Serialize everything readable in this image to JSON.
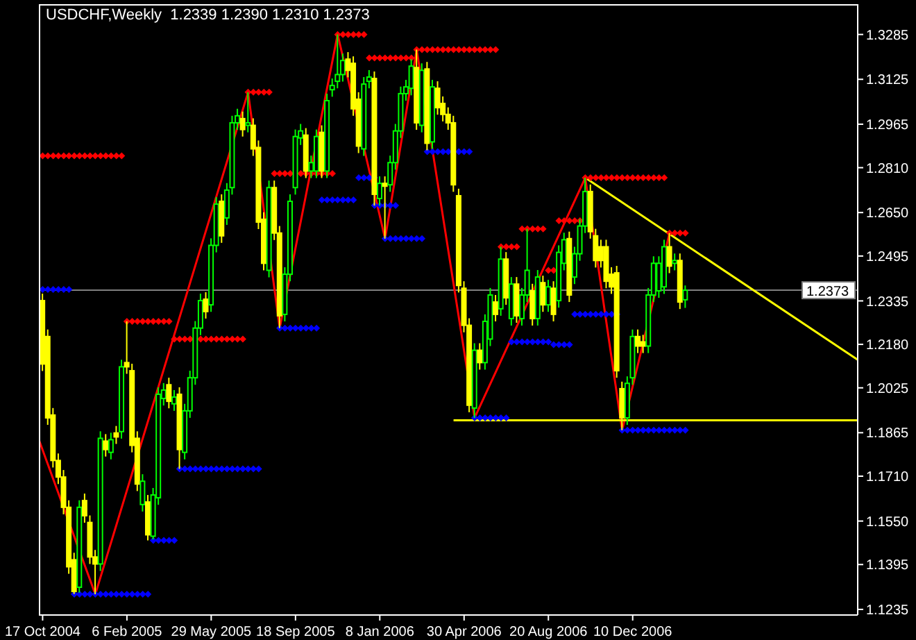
{
  "chart_data": {
    "type": "candlestick",
    "title": "USDCHF,Weekly  1.2339 1.2390 1.2310 1.2373",
    "x": [
      "2004-10-17",
      "2004-10-24",
      "2004-10-31",
      "2004-11-07",
      "2004-11-14",
      "2004-11-21",
      "2004-11-28",
      "2004-12-05",
      "2004-12-12",
      "2004-12-19",
      "2004-12-26",
      "2005-01-02",
      "2005-01-09",
      "2005-01-16",
      "2005-01-23",
      "2005-01-30",
      "2005-02-06",
      "2005-02-13",
      "2005-02-20",
      "2005-02-27",
      "2005-03-06",
      "2005-03-13",
      "2005-03-20",
      "2005-03-27",
      "2005-04-03",
      "2005-04-10",
      "2005-04-17",
      "2005-04-24",
      "2005-05-01",
      "2005-05-08",
      "2005-05-15",
      "2005-05-22",
      "2005-05-29",
      "2005-06-05",
      "2005-06-12",
      "2005-06-19",
      "2005-06-26",
      "2005-07-03",
      "2005-07-10",
      "2005-07-17",
      "2005-07-24",
      "2005-07-31",
      "2005-08-07",
      "2005-08-14",
      "2005-08-21",
      "2005-08-28",
      "2005-09-04",
      "2005-09-11",
      "2005-09-18",
      "2005-09-25",
      "2005-10-02",
      "2005-10-09",
      "2005-10-16",
      "2005-10-23",
      "2005-10-30",
      "2005-11-06",
      "2005-11-13",
      "2005-11-20",
      "2005-11-27",
      "2005-12-04",
      "2005-12-11",
      "2005-12-18",
      "2005-12-25",
      "2006-01-01",
      "2006-01-08",
      "2006-01-15",
      "2006-01-22",
      "2006-01-29",
      "2006-02-05",
      "2006-02-12",
      "2006-02-19",
      "2006-02-26",
      "2006-03-05",
      "2006-03-12",
      "2006-03-19",
      "2006-03-26",
      "2006-04-02",
      "2006-04-09",
      "2006-04-16",
      "2006-04-23",
      "2006-04-30",
      "2006-05-07",
      "2006-05-14",
      "2006-05-21",
      "2006-05-28",
      "2006-06-04",
      "2006-06-11",
      "2006-06-18",
      "2006-06-25",
      "2006-07-02",
      "2006-07-09",
      "2006-07-16",
      "2006-07-23",
      "2006-07-30",
      "2006-08-06",
      "2006-08-13",
      "2006-08-20",
      "2006-08-27",
      "2006-09-03",
      "2006-09-10",
      "2006-09-17",
      "2006-09-24",
      "2006-10-01",
      "2006-10-08",
      "2006-10-15",
      "2006-10-22",
      "2006-10-29",
      "2006-11-05",
      "2006-11-12",
      "2006-11-19",
      "2006-11-26",
      "2006-12-03",
      "2006-12-10",
      "2006-12-17",
      "2006-12-24",
      "2006-12-31",
      "2007-01-07",
      "2007-01-14",
      "2007-01-21",
      "2007-01-28",
      "2007-02-04",
      "2007-02-11",
      "2007-02-18"
    ],
    "ohlc": [
      [
        1.2336,
        1.2361,
        1.2085,
        1.211
      ],
      [
        1.2208,
        1.2233,
        1.1893,
        1.1918
      ],
      [
        1.1928,
        1.1953,
        1.1741,
        1.1766
      ],
      [
        1.1766,
        1.1791,
        1.1682,
        1.1707
      ],
      [
        1.1707,
        1.1732,
        1.1574,
        1.1599
      ],
      [
        1.1599,
        1.1624,
        1.1362,
        1.1387
      ],
      [
        1.1412,
        1.1437,
        1.129,
        1.1299
      ],
      [
        1.1314,
        1.1624,
        1.1295,
        1.1599
      ],
      [
        1.1623,
        1.1648,
        1.1544,
        1.1569
      ],
      [
        1.1545,
        1.157,
        1.1397,
        1.1422
      ],
      [
        1.1422,
        1.1447,
        1.1289,
        1.1397
      ],
      [
        1.1397,
        1.187,
        1.1372,
        1.1845
      ],
      [
        1.1835,
        1.186,
        1.178,
        1.1805
      ],
      [
        1.1795,
        1.1865,
        1.177,
        1.184
      ],
      [
        1.1864,
        1.1889,
        1.1825,
        1.185
      ],
      [
        1.1869,
        1.2125,
        1.1844,
        1.21
      ],
      [
        1.2115,
        1.2262,
        1.2075,
        1.21
      ],
      [
        1.2086,
        1.2111,
        1.1795,
        1.182
      ],
      [
        1.1845,
        1.187,
        1.1657,
        1.1682
      ],
      [
        1.1609,
        1.1717,
        1.1584,
        1.1692
      ],
      [
        1.1618,
        1.1643,
        1.1481,
        1.1501
      ],
      [
        1.1496,
        1.1668,
        1.1485,
        1.1643
      ],
      [
        1.1633,
        1.2027,
        1.1608,
        1.2002
      ],
      [
        1.1987,
        1.2042,
        1.1962,
        1.2017
      ],
      [
        1.2036,
        1.2061,
        1.1952,
        1.1977
      ],
      [
        1.1968,
        1.2017,
        1.1943,
        1.1992
      ],
      [
        1.2002,
        1.2027,
        1.1736,
        1.1805
      ],
      [
        1.1795,
        1.1968,
        1.177,
        1.1943
      ],
      [
        1.1943,
        1.2086,
        1.1918,
        1.2061
      ],
      [
        1.2061,
        1.2263,
        1.2036,
        1.2238
      ],
      [
        1.2238,
        1.2361,
        1.2213,
        1.2336
      ],
      [
        1.2341,
        1.2366,
        1.2272,
        1.2297
      ],
      [
        1.2321,
        1.2558,
        1.2296,
        1.2533
      ],
      [
        1.2533,
        1.2705,
        1.2508,
        1.268
      ],
      [
        1.269,
        1.2715,
        1.2542,
        1.2567
      ],
      [
        1.2631,
        1.2755,
        1.2606,
        1.273
      ],
      [
        1.2739,
        1.2995,
        1.2714,
        1.297
      ],
      [
        1.297,
        1.302,
        1.2945,
        1.2995
      ],
      [
        1.2985,
        1.301,
        1.2921,
        1.2946
      ],
      [
        1.2961,
        1.3079,
        1.2936,
        1.297
      ],
      [
        1.2961,
        1.2986,
        1.2852,
        1.2877
      ],
      [
        1.2882,
        1.2907,
        1.2591,
        1.2616
      ],
      [
        1.2626,
        1.2651,
        1.2444,
        1.2469
      ],
      [
        1.2444,
        1.2764,
        1.2419,
        1.2739
      ],
      [
        1.2739,
        1.2764,
        1.2552,
        1.2577
      ],
      [
        1.2577,
        1.2602,
        1.2238,
        1.2282
      ],
      [
        1.2287,
        1.2455,
        1.2262,
        1.243
      ],
      [
        1.243,
        1.2715,
        1.2405,
        1.269
      ],
      [
        1.2739,
        1.2946,
        1.2714,
        1.2921
      ],
      [
        1.2916,
        1.2966,
        1.2891,
        1.2941
      ],
      [
        1.2926,
        1.2951,
        1.2773,
        1.2798
      ],
      [
        1.2798,
        1.2853,
        1.2773,
        1.2828
      ],
      [
        1.2798,
        1.2946,
        1.2773,
        1.2921
      ],
      [
        1.2936,
        1.2961,
        1.2773,
        1.2798
      ],
      [
        1.2798,
        1.3074,
        1.2773,
        1.3049
      ],
      [
        1.3088,
        1.3128,
        1.3063,
        1.3103
      ],
      [
        1.3118,
        1.3285,
        1.3093,
        1.3142
      ],
      [
        1.3142,
        1.3217,
        1.3117,
        1.3192
      ],
      [
        1.3197,
        1.3222,
        1.3132,
        1.3157
      ],
      [
        1.3182,
        1.3207,
        1.2995,
        1.302
      ],
      [
        1.3054,
        1.3079,
        1.2862,
        1.2887
      ],
      [
        1.2877,
        1.3133,
        1.2852,
        1.3108
      ],
      [
        1.3118,
        1.3158,
        1.3093,
        1.3133
      ],
      [
        1.3128,
        1.3153,
        1.2675,
        1.2715
      ],
      [
        1.27,
        1.2779,
        1.2675,
        1.2754
      ],
      [
        1.2754,
        1.2779,
        1.2557,
        1.2744
      ],
      [
        1.2749,
        1.2853,
        1.2724,
        1.2828
      ],
      [
        1.2828,
        1.2966,
        1.2803,
        1.2941
      ],
      [
        1.2941,
        1.3099,
        1.2916,
        1.3074
      ],
      [
        1.3074,
        1.3123,
        1.3049,
        1.3098
      ],
      [
        1.3093,
        1.3197,
        1.3068,
        1.3172
      ],
      [
        1.3167,
        1.3231,
        1.2945,
        1.297
      ],
      [
        1.2961,
        1.3182,
        1.2936,
        1.3157
      ],
      [
        1.3162,
        1.3187,
        1.2872,
        1.2897
      ],
      [
        1.2902,
        1.3123,
        1.2877,
        1.3098
      ],
      [
        1.3093,
        1.3118,
        1.2999,
        1.3024
      ],
      [
        1.3039,
        1.3064,
        1.2975,
        1.3
      ],
      [
        1.3,
        1.3025,
        1.2945,
        1.297
      ],
      [
        1.297,
        1.2995,
        1.2724,
        1.2749
      ],
      [
        1.271,
        1.2735,
        1.2365,
        1.239
      ],
      [
        1.238,
        1.2405,
        1.2223,
        1.2248
      ],
      [
        1.2248,
        1.2273,
        1.1938,
        1.1963
      ],
      [
        1.1953,
        1.2184,
        1.1918,
        1.2159
      ],
      [
        1.2159,
        1.2184,
        1.209,
        1.2115
      ],
      [
        1.2115,
        1.2287,
        1.209,
        1.2262
      ],
      [
        1.2199,
        1.2381,
        1.2174,
        1.2356
      ],
      [
        1.2331,
        1.2356,
        1.2262,
        1.2287
      ],
      [
        1.2307,
        1.2528,
        1.2282,
        1.2484
      ],
      [
        1.2484,
        1.2509,
        1.2321,
        1.2346
      ],
      [
        1.2272,
        1.242,
        1.2247,
        1.2395
      ],
      [
        1.2395,
        1.242,
        1.2257,
        1.2282
      ],
      [
        1.2272,
        1.2381,
        1.2247,
        1.2356
      ],
      [
        1.2356,
        1.2592,
        1.2331,
        1.2444
      ],
      [
        1.2371,
        1.2396,
        1.2247,
        1.2272
      ],
      [
        1.2272,
        1.2445,
        1.2247,
        1.242
      ],
      [
        1.24,
        1.2425,
        1.2296,
        1.2321
      ],
      [
        1.2321,
        1.241,
        1.2296,
        1.2385
      ],
      [
        1.238,
        1.2405,
        1.2262,
        1.2287
      ],
      [
        1.2336,
        1.2533,
        1.2311,
        1.2508
      ],
      [
        1.2469,
        1.2578,
        1.2444,
        1.2553
      ],
      [
        1.2557,
        1.2582,
        1.2331,
        1.2356
      ],
      [
        1.242,
        1.2528,
        1.2395,
        1.2503
      ],
      [
        1.2503,
        1.2627,
        1.2478,
        1.2602
      ],
      [
        1.2602,
        1.2774,
        1.2577,
        1.2725
      ],
      [
        1.2725,
        1.275,
        1.2557,
        1.2582
      ],
      [
        1.2567,
        1.2592,
        1.2454,
        1.2479
      ],
      [
        1.2528,
        1.2553,
        1.2454,
        1.2479
      ],
      [
        1.2528,
        1.2553,
        1.238,
        1.2405
      ],
      [
        1.243,
        1.2455,
        1.236,
        1.2385
      ],
      [
        1.2435,
        1.246,
        1.2061,
        1.2086
      ],
      [
        1.2022,
        1.2047,
        1.1874,
        1.1918
      ],
      [
        1.1918,
        1.2066,
        1.1893,
        1.2041
      ],
      [
        1.2061,
        1.2233,
        1.2036,
        1.2208
      ],
      [
        1.2208,
        1.2233,
        1.2149,
        1.2174
      ],
      [
        1.2189,
        1.2214,
        1.2149,
        1.2174
      ],
      [
        1.2174,
        1.2381,
        1.2149,
        1.2356
      ],
      [
        1.2356,
        1.2494,
        1.2331,
        1.2469
      ],
      [
        1.2371,
        1.2494,
        1.2346,
        1.2469
      ],
      [
        1.2385,
        1.2553,
        1.236,
        1.2528
      ],
      [
        1.2528,
        1.2577,
        1.2434,
        1.2459
      ],
      [
        1.2469,
        1.2504,
        1.2444,
        1.2479
      ],
      [
        1.2479,
        1.2504,
        1.2306,
        1.2331
      ],
      [
        1.2339,
        1.239,
        1.231,
        1.2373
      ]
    ],
    "colors": [
      "#ffff00",
      "#ffff00",
      "#ffff00",
      "#ffff00",
      "#ffff00",
      "#ffff00",
      "#ffff00",
      "#00ff00",
      "#ffff00",
      "#ffff00",
      "#ffff00",
      "#00ff00",
      "#ffff00",
      "#00ff00",
      "#ffff00",
      "#00ff00",
      "#ffff00",
      "#ffff00",
      "#ffff00",
      "#00ff00",
      "#ffff00",
      "#00ff00",
      "#00ff00",
      "#00ff00",
      "#ffff00",
      "#00ff00",
      "#ffff00",
      "#00ff00",
      "#00ff00",
      "#00ff00",
      "#00ff00",
      "#ffff00",
      "#00ff00",
      "#00ff00",
      "#ffff00",
      "#00ff00",
      "#00ff00",
      "#00ff00",
      "#ffff00",
      "#00ff00",
      "#ffff00",
      "#ffff00",
      "#ffff00",
      "#00ff00",
      "#ffff00",
      "#ffff00",
      "#00ff00",
      "#00ff00",
      "#00ff00",
      "#00ff00",
      "#ffff00",
      "#00ff00",
      "#00ff00",
      "#ffff00",
      "#00ff00",
      "#00ff00",
      "#00ff00",
      "#00ff00",
      "#ffff00",
      "#ffff00",
      "#ffff00",
      "#00ff00",
      "#00ff00",
      "#ffff00",
      "#00ff00",
      "#ffff00",
      "#00ff00",
      "#00ff00",
      "#00ff00",
      "#00ff00",
      "#00ff00",
      "#ffff00",
      "#00ff00",
      "#ffff00",
      "#00ff00",
      "#ffff00",
      "#ffff00",
      "#ffff00",
      "#ffff00",
      "#ffff00",
      "#ffff00",
      "#ffff00",
      "#00ff00",
      "#ffff00",
      "#00ff00",
      "#00ff00",
      "#ffff00",
      "#00ff00",
      "#ffff00",
      "#00ff00",
      "#ffff00",
      "#00ff00",
      "#00ff00",
      "#ffff00",
      "#00ff00",
      "#ffff00",
      "#00ff00",
      "#ffff00",
      "#00ff00",
      "#00ff00",
      "#ffff00",
      "#00ff00",
      "#00ff00",
      "#00ff00",
      "#ffff00",
      "#ffff00",
      "#ffff00",
      "#ffff00",
      "#ffff00",
      "#ffff00",
      "#ffff00",
      "#00ff00",
      "#00ff00",
      "#ffff00",
      "#ffff00",
      "#00ff00",
      "#00ff00",
      "#00ff00",
      "#00ff00",
      "#ffff00",
      "#00ff00",
      "#ffff00",
      "#00ff00"
    ],
    "series": [
      {
        "type": "line",
        "color": "#ff0000",
        "x": [
          "2004-10-12",
          "2004-12-26",
          "2005-07-17",
          "2005-08-28",
          "2005-11-13",
          "2006-01-15",
          "2006-02-26",
          "2006-05-14",
          "2006-10-08",
          "2006-11-26",
          "2007-01-28"
        ],
        "values": [
          1.184,
          1.1289,
          1.3079,
          1.2238,
          1.3285,
          1.2557,
          1.3231,
          1.1918,
          1.2774,
          1.1874,
          1.2577
        ]
      },
      {
        "type": "scatter",
        "marker": "diamond",
        "color": "#ff0000",
        "values": [
          1.2852,
          1.2852,
          1.2852,
          1.2852,
          1.2852,
          1.2852,
          1.2852,
          1.2852,
          1.2852,
          1.2852,
          1.2852,
          1.2852,
          1.2852,
          1.2852,
          1.2852,
          1.2852,
          1.2262,
          1.2262,
          1.2262,
          1.2262,
          1.2262,
          1.2262,
          1.2262,
          1.2262,
          1.2262,
          1.2199,
          1.2199,
          1.2199,
          1.2199,
          null,
          1.2199,
          1.2199,
          1.2199,
          1.2199,
          1.2199,
          1.2199,
          1.2199,
          1.2199,
          1.2199,
          1.3079,
          1.3079,
          1.3079,
          1.3079,
          1.3079,
          1.2789,
          1.2789,
          1.2789,
          1.2789,
          null,
          1.2789,
          1.2789,
          1.2789,
          1.2789,
          1.2789,
          1.2789,
          1.2789,
          1.3285,
          1.3285,
          1.3285,
          1.3285,
          1.3285,
          1.3285,
          1.3201,
          1.3201,
          1.3201,
          1.3201,
          1.3201,
          1.3201,
          1.3201,
          1.3201,
          1.3201,
          1.3231,
          1.3231,
          1.3231,
          1.3231,
          1.3231,
          1.3231,
          1.3231,
          1.3231,
          1.3231,
          1.3231,
          1.3231,
          1.3231,
          1.3231,
          1.3231,
          1.3231,
          1.3231,
          1.2528,
          1.2528,
          1.2528,
          1.2528,
          1.2592,
          1.2592,
          1.2592,
          1.2592,
          1.2592,
          1.2444,
          1.2444,
          1.2621,
          1.2621,
          1.2621,
          1.2621,
          1.2621,
          1.2774,
          1.2774,
          1.2774,
          1.2774,
          1.2774,
          1.2774,
          1.2774,
          1.2774,
          1.2774,
          1.2774,
          1.2774,
          1.2774,
          1.2774,
          1.2774,
          1.2774,
          1.2774,
          1.2577,
          1.2577,
          1.2577,
          1.2577
        ]
      },
      {
        "type": "scatter",
        "marker": "diamond",
        "color": "#0000ff",
        "values": [
          1.2376,
          1.2376,
          1.2376,
          1.2376,
          1.2376,
          1.2376,
          1.1289,
          1.1289,
          1.1289,
          1.1289,
          1.1289,
          1.1289,
          1.1289,
          1.1289,
          1.1289,
          1.1289,
          1.1289,
          1.1289,
          1.1289,
          1.1289,
          1.1289,
          1.1481,
          1.1481,
          1.1481,
          1.1481,
          1.1481,
          1.1736,
          1.1736,
          1.1736,
          1.1736,
          1.1736,
          1.1736,
          1.1736,
          1.1736,
          1.1736,
          1.1736,
          1.1736,
          1.1736,
          1.1736,
          1.1736,
          1.1736,
          1.1736,
          null,
          null,
          null,
          1.2238,
          1.2238,
          1.2238,
          1.2238,
          1.2238,
          1.2238,
          1.2238,
          1.2238,
          1.2695,
          1.2695,
          1.2695,
          1.2695,
          1.2695,
          1.2695,
          1.2695,
          1.2774,
          1.2774,
          1.2774,
          1.2774,
          null,
          1.2557,
          1.2557,
          1.2557,
          1.2557,
          1.2557,
          1.2557,
          1.2557,
          1.2557,
          1.2867,
          1.2867,
          1.2867,
          1.2867,
          1.2867,
          null,
          1.2867,
          1.2867,
          1.2867,
          1.1918,
          1.1918,
          1.1918,
          1.1918,
          1.1918,
          1.1918,
          1.1918,
          1.2189,
          1.2189,
          1.2189,
          1.2189,
          1.2189,
          1.2189,
          1.2189,
          1.2189,
          1.2179,
          1.2179,
          1.2179,
          1.2179,
          1.2287,
          1.2287,
          1.2287,
          1.2287,
          1.2287,
          1.2287,
          1.2287,
          1.2287,
          1.2287,
          1.1874,
          1.1874,
          1.1874,
          1.1874,
          1.1874,
          1.1874,
          1.1874,
          1.1874,
          1.1874,
          1.1874,
          1.1874,
          1.1874,
          1.1874
        ]
      },
      {
        "type": "scatter",
        "marker": "diamond",
        "color": "#0000ff",
        "x": [
          "2006-01-01",
          "2006-01-08",
          "2006-01-15",
          "2006-01-22",
          "2006-01-29"
        ],
        "values": [
          1.2675,
          1.2675,
          1.2675,
          1.2675,
          1.2675
        ]
      },
      {
        "type": "line",
        "color": "#ffff00",
        "x": [
          "2006-04-16",
          "2007-10-05"
        ],
        "values": [
          1.1909,
          1.1909
        ]
      },
      {
        "type": "line",
        "color": "#ffff00",
        "x": [
          "2006-10-08",
          "2007-10-05"
        ],
        "values": [
          1.2774,
          1.2125
        ]
      }
    ],
    "ref_lines": [
      {
        "axis": "y",
        "value": 1.2373,
        "label": "1.2373",
        "color": "#808080"
      }
    ],
    "xlim": [
      "2004-10-12",
      "2007-10-05"
    ],
    "xticks": [
      {
        "value": "2004-10-17",
        "label": "17 Oct 2004"
      },
      {
        "value": "2005-02-06",
        "label": "6 Feb 2005"
      },
      {
        "value": "2005-05-29",
        "label": "29 May 2005"
      },
      {
        "value": "2005-09-18",
        "label": "18 Sep 2005"
      },
      {
        "value": "2006-01-08",
        "label": "8 Jan 2006"
      },
      {
        "value": "2006-04-30",
        "label": "30 Apr 2006"
      },
      {
        "value": "2006-08-20",
        "label": "20 Aug 2006"
      },
      {
        "value": "2006-12-10",
        "label": "10 Dec 2006"
      }
    ],
    "ylim": [
      1.1215,
      1.3393
    ],
    "yticks": [
      {
        "value": 1.1235,
        "label": "1.1235"
      },
      {
        "value": 1.1395,
        "label": "1.1395"
      },
      {
        "value": 1.155,
        "label": "1.1550"
      },
      {
        "value": 1.171,
        "label": "1.1710"
      },
      {
        "value": 1.1865,
        "label": "1.1865"
      },
      {
        "value": 1.2025,
        "label": "1.2025"
      },
      {
        "value": 1.218,
        "label": "1.2180"
      },
      {
        "value": 1.2335,
        "label": "1.2335"
      },
      {
        "value": 1.2495,
        "label": "1.2495"
      },
      {
        "value": 1.265,
        "label": "1.2650"
      },
      {
        "value": 1.281,
        "label": "1.2810"
      },
      {
        "value": 1.2965,
        "label": "1.2965"
      },
      {
        "value": 1.3125,
        "label": "1.3125"
      },
      {
        "value": 1.3285,
        "label": "1.3285"
      }
    ]
  }
}
